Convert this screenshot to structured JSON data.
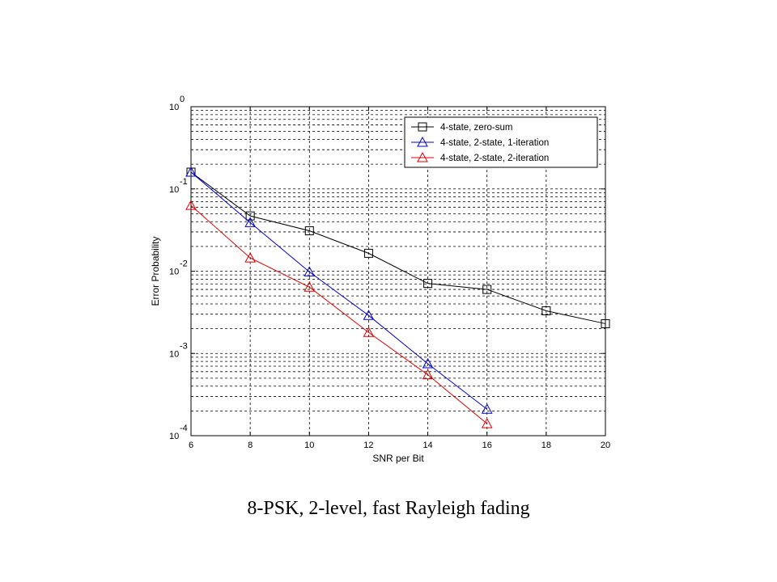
{
  "caption": "8-PSK, 2-level, fast Rayleigh fading",
  "chart_data": {
    "type": "line",
    "xlabel": "SNR per Bit",
    "ylabel": "Error Probability",
    "xlim": [
      6,
      20
    ],
    "ylim": [
      0.0001,
      1
    ],
    "y_scale": "log",
    "x_ticks": [
      "6",
      "8",
      "10",
      "12",
      "14",
      "16",
      "18",
      "20"
    ],
    "y_ticks": [
      {
        "base": "10",
        "exp": "0"
      },
      {
        "base": "10",
        "exp": "-1"
      },
      {
        "base": "10",
        "exp": "-2"
      },
      {
        "base": "10",
        "exp": "-3"
      },
      {
        "base": "10",
        "exp": "-4"
      }
    ],
    "grid": true,
    "legend_position": "top-right",
    "series": [
      {
        "name": "4-state, zero-sum",
        "color": "#000000",
        "marker": "square",
        "x": [
          6,
          8,
          10,
          12,
          14,
          16,
          18,
          20
        ],
        "y": [
          0.16,
          0.047,
          0.031,
          0.0165,
          0.0071,
          0.006,
          0.0033,
          0.0023
        ]
      },
      {
        "name": "4-state, 2-state, 1-iteration",
        "color": "#0000cc",
        "marker": "triangle",
        "x": [
          6,
          8,
          10,
          12,
          14,
          16
        ],
        "y": [
          0.16,
          0.039,
          0.0098,
          0.0029,
          0.00075,
          0.00021
        ]
      },
      {
        "name": "4-state, 2-state, 2-iteration",
        "color": "#dd0000",
        "marker": "triangle",
        "x": [
          6,
          8,
          10,
          12,
          14,
          16
        ],
        "y": [
          0.063,
          0.0145,
          0.0064,
          0.0018,
          0.00055,
          0.00014
        ]
      }
    ]
  }
}
